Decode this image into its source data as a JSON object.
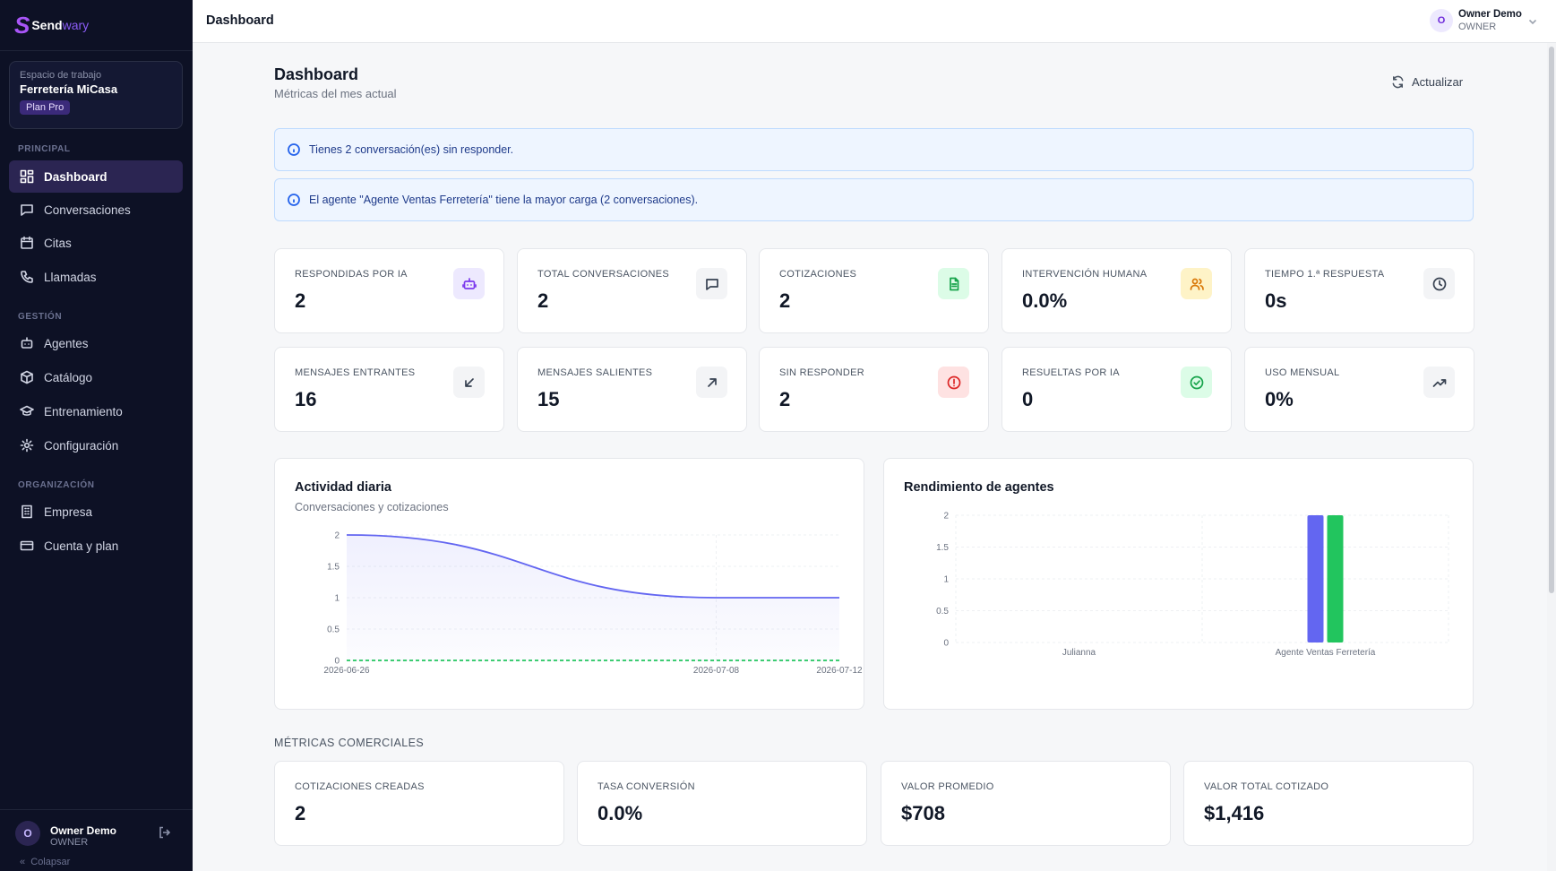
{
  "brand": {
    "name": "Send",
    "name_accent": "wary",
    "logo_mark": "S"
  },
  "workspace": {
    "caption": "Espacio de trabajo",
    "name": "Ferretería MiCasa",
    "plan": "Plan Pro"
  },
  "nav": {
    "sections": [
      "PRINCIPAL",
      "GESTIÓN",
      "ORGANIZACIÓN"
    ],
    "items": [
      {
        "label": "Dashboard",
        "icon": "grid-icon",
        "active": true
      },
      {
        "label": "Conversaciones",
        "icon": "chat-icon"
      },
      {
        "label": "Citas",
        "icon": "calendar-icon"
      },
      {
        "label": "Llamadas",
        "icon": "phone-icon"
      },
      {
        "label": "Agentes",
        "icon": "bot-icon"
      },
      {
        "label": "Catálogo",
        "icon": "package-icon"
      },
      {
        "label": "Entrenamiento",
        "icon": "graduation-cap-icon"
      },
      {
        "label": "Configuración",
        "icon": "gear-icon"
      },
      {
        "label": "Empresa",
        "icon": "building-icon"
      },
      {
        "label": "Cuenta y plan",
        "icon": "credit-card-icon"
      }
    ]
  },
  "sidebar_footer": {
    "avatar": "O",
    "name": "Owner Demo",
    "role": "OWNER",
    "collapse": "Colapsar"
  },
  "topbar": {
    "title": "Dashboard",
    "avatar": "O",
    "user_name": "Owner Demo",
    "user_role": "OWNER"
  },
  "header": {
    "title": "Dashboard",
    "subtitle": "Métricas del mes actual",
    "refresh_label": "Actualizar"
  },
  "alerts": [
    "Tienes 2 conversación(es) sin responder.",
    "El agente \"Agente Ventas Ferretería\" tiene la mayor carga (2 conversaciones)."
  ],
  "stats": [
    {
      "label": "RESPONDIDAS POR IA",
      "value": "2",
      "icon": "bot-icon",
      "icon_color": "#7c3aed",
      "icon_bg": "#ede9fe"
    },
    {
      "label": "TOTAL CONVERSACIONES",
      "value": "2",
      "icon": "chat-icon",
      "icon_color": "#374151",
      "icon_bg": "#f3f4f6"
    },
    {
      "label": "COTIZACIONES",
      "value": "2",
      "icon": "document-icon",
      "icon_color": "#16a34a",
      "icon_bg": "#dcfce7"
    },
    {
      "label": "INTERVENCIÓN HUMANA",
      "value": "0.0%",
      "icon": "users-icon",
      "icon_color": "#d97706",
      "icon_bg": "#fef3c7"
    },
    {
      "label": "TIEMPO 1.ª RESPUESTA",
      "value": "0s",
      "icon": "clock-icon",
      "icon_color": "#374151",
      "icon_bg": "#f3f4f6"
    },
    {
      "label": "MENSAJES ENTRANTES",
      "value": "16",
      "icon": "arrow-down-left-icon",
      "icon_color": "#374151",
      "icon_bg": "#f3f4f6"
    },
    {
      "label": "MENSAJES SALIENTES",
      "value": "15",
      "icon": "arrow-up-right-icon",
      "icon_color": "#374151",
      "icon_bg": "#f3f4f6"
    },
    {
      "label": "SIN RESPONDER",
      "value": "2",
      "icon": "alert-circle-icon",
      "icon_color": "#dc2626",
      "icon_bg": "#fee2e2"
    },
    {
      "label": "RESUELTAS POR IA",
      "value": "0",
      "icon": "check-circle-icon",
      "icon_color": "#16a34a",
      "icon_bg": "#dcfce7"
    },
    {
      "label": "USO MENSUAL",
      "value": "0%",
      "icon": "trending-up-icon",
      "icon_color": "#374151",
      "icon_bg": "#f3f4f6"
    }
  ],
  "panels": {
    "activity": {
      "title": "Actividad diaria",
      "subtitle": "Conversaciones y cotizaciones"
    },
    "agents": {
      "title": "Rendimiento de agentes"
    }
  },
  "chart_data": [
    {
      "type": "area",
      "title": "Actividad diaria",
      "x": [
        "2026-06-26",
        "2026-07-08",
        "2026-07-12"
      ],
      "series": [
        {
          "name": "",
          "values": [
            2,
            1,
            1
          ],
          "color": "#6366f1"
        },
        {
          "name": "",
          "values": [
            0,
            0,
            0
          ],
          "color": "#22c55e"
        }
      ],
      "ylim": [
        0,
        2
      ],
      "yticks": [
        "0",
        "0.5",
        "1",
        "1.5",
        "2"
      ],
      "grid": true
    },
    {
      "type": "bar",
      "title": "Rendimiento de agentes",
      "categories": [
        "Julianna",
        "Agente Ventas Ferretería"
      ],
      "series": [
        {
          "name": "",
          "values": [
            0,
            2
          ],
          "color": "#6366f1"
        },
        {
          "name": "",
          "values": [
            0,
            2
          ],
          "color": "#22c55e"
        }
      ],
      "ylim": [
        0,
        2
      ],
      "yticks": [
        "0",
        "0.5",
        "1",
        "1.5",
        "2"
      ],
      "grid": true
    }
  ],
  "commercial": {
    "title": "MÉTRICAS COMERCIALES",
    "stats": [
      {
        "label": "COTIZACIONES CREADAS",
        "value": "2"
      },
      {
        "label": "TASA CONVERSIÓN",
        "value": "0.0%"
      },
      {
        "label": "VALOR PROMEDIO",
        "value": "$708"
      },
      {
        "label": "VALOR TOTAL COTIZADO",
        "value": "$1,416"
      }
    ]
  }
}
